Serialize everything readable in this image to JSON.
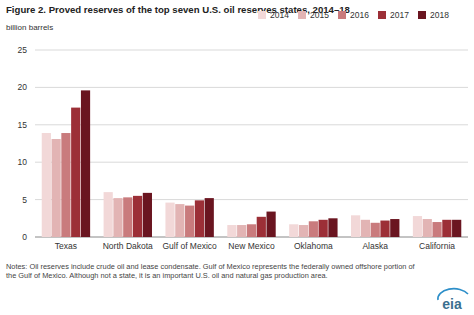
{
  "chart_data": {
    "type": "bar",
    "title": "Figure 2. Proved reserves of the top seven U.S. oil reserves states, 2014–18",
    "y_label": "billion barrels",
    "categories": [
      "Texas",
      "North Dakota",
      "Gulf of Mexico",
      "New Mexico",
      "Oklahoma",
      "Alaska",
      "California"
    ],
    "series": [
      {
        "name": "2014",
        "color": "#f2d8d8",
        "values": [
          13.9,
          6.0,
          4.6,
          1.6,
          1.7,
          2.9,
          2.8
        ]
      },
      {
        "name": "2015",
        "color": "#e2b4b4",
        "values": [
          13.1,
          5.2,
          4.4,
          1.6,
          1.6,
          2.3,
          2.4
        ]
      },
      {
        "name": "2016",
        "color": "#c97b7d",
        "values": [
          13.9,
          5.3,
          4.2,
          1.7,
          2.1,
          1.9,
          2.0
        ]
      },
      {
        "name": "2017",
        "color": "#9c2f37",
        "values": [
          17.3,
          5.5,
          4.9,
          2.7,
          2.3,
          2.2,
          2.3
        ]
      },
      {
        "name": "2018",
        "color": "#6a1520",
        "values": [
          19.6,
          5.9,
          5.2,
          3.4,
          2.5,
          2.4,
          2.3
        ]
      }
    ],
    "ylim": [
      0,
      25
    ],
    "yticks": [
      0,
      5,
      10,
      15,
      20,
      25
    ],
    "grid": true,
    "legend": "top-right",
    "annotations": [
      "Notes: Oil reserves include crude oil and lease condensate. Gulf of Mexico represents the federally owned offshore portion of the Gulf of Mexico. Although not a state, it is an important U.S. oil and natural gas production area.",
      "eia"
    ]
  }
}
